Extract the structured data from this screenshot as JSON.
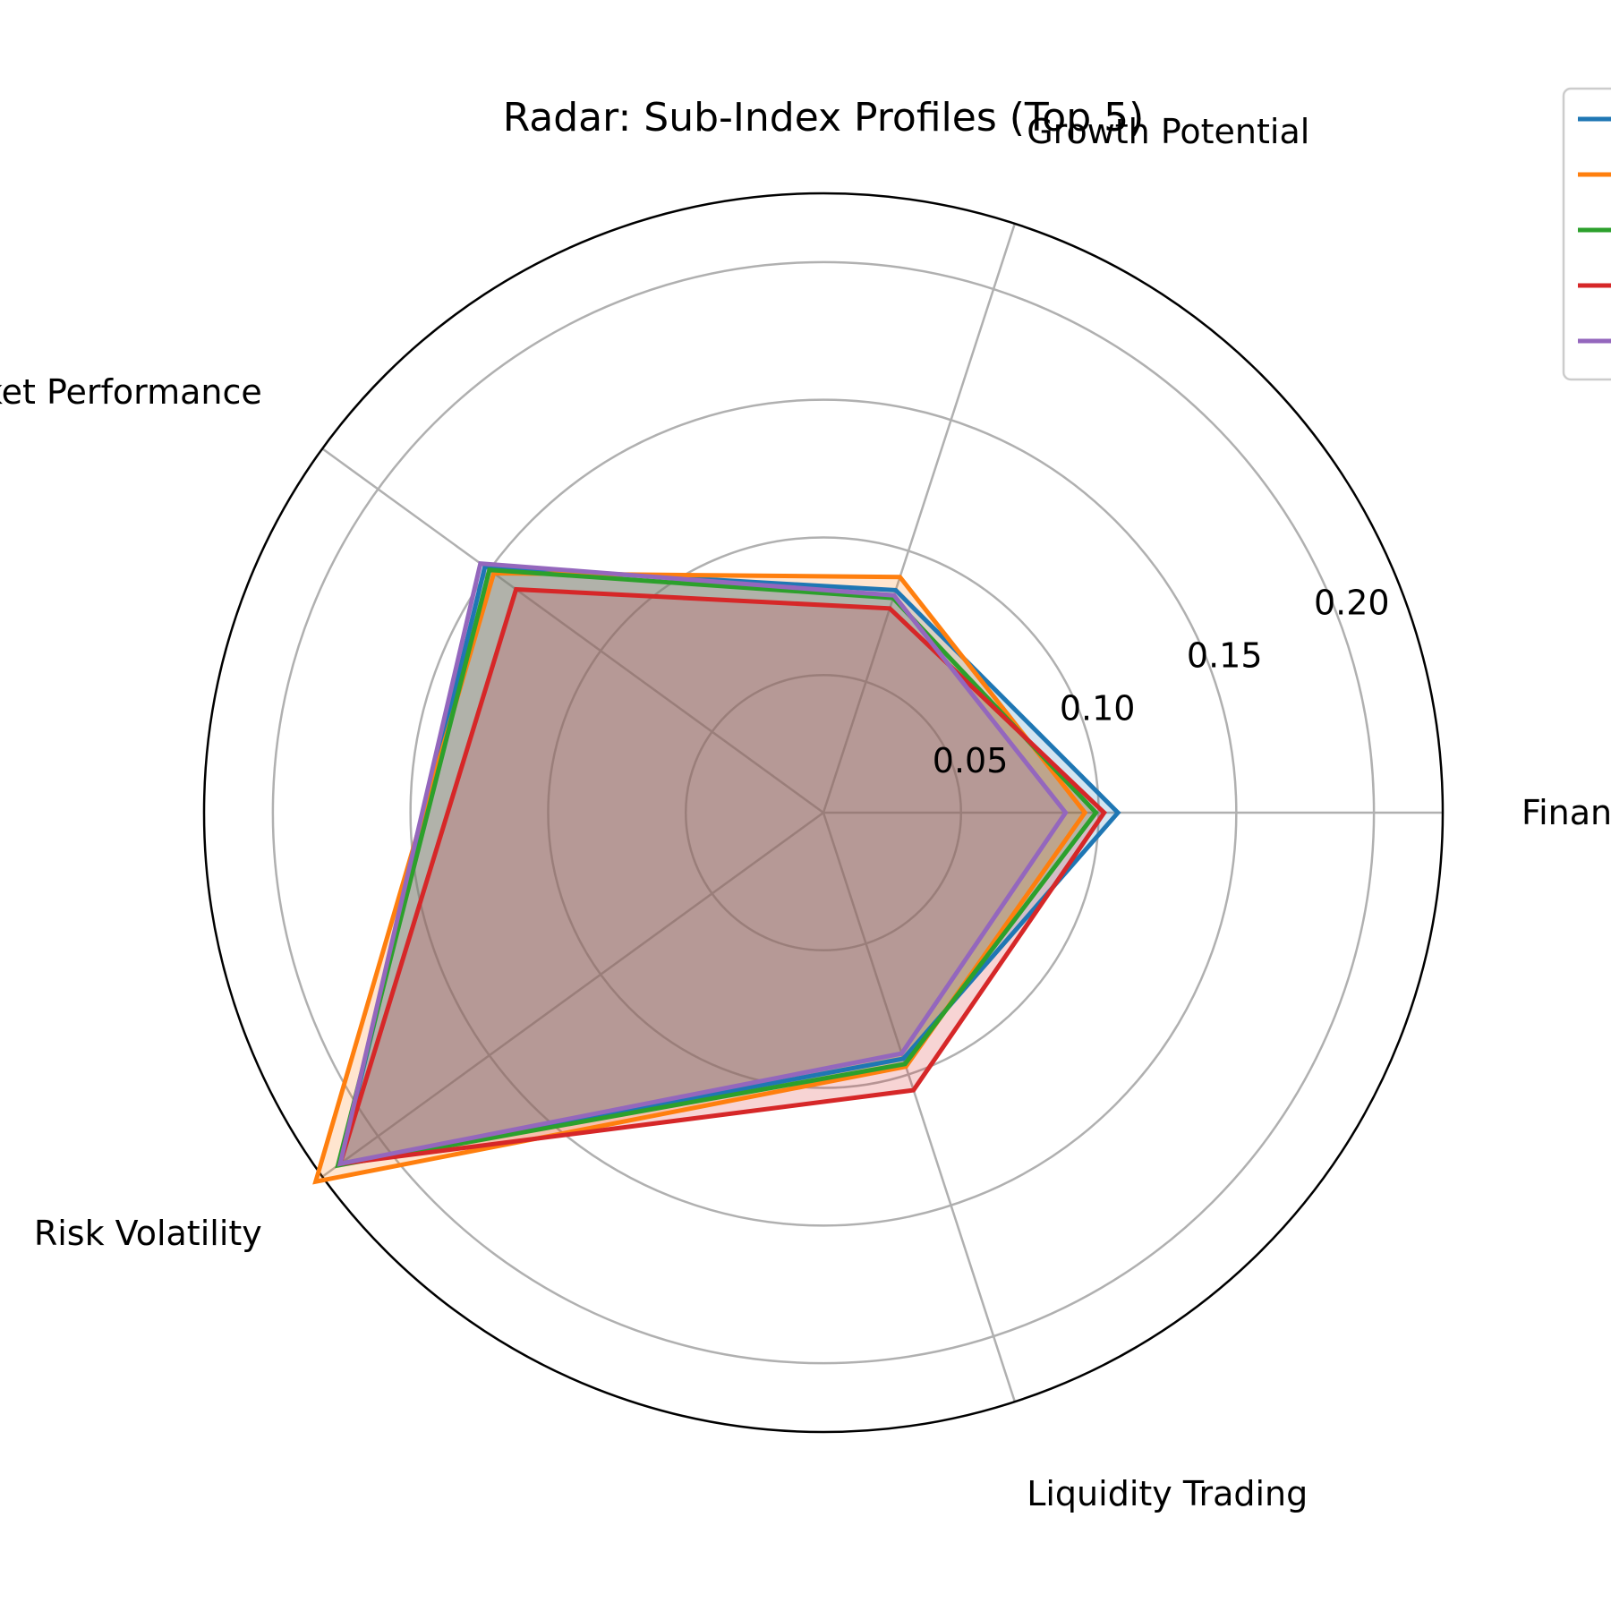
{
  "chart_data": {
    "type": "radar",
    "title": "Radar: Sub-Index Profiles (Top 5)",
    "axes": [
      "Financial Strength",
      "Growth Potential",
      "Market Performance",
      "Risk Volatility",
      "Liquidity Trading"
    ],
    "rlim": [
      0,
      0.225
    ],
    "rticks": [
      0.05,
      0.1,
      0.15,
      0.2
    ],
    "rtick_labels": [
      "0.05",
      "0.10",
      "0.15",
      "0.20"
    ],
    "grid": true,
    "legend_position": "top-right",
    "series": [
      {
        "values": [
          0.107,
          0.085,
          0.152,
          0.217,
          0.094
        ],
        "color": "#1f77b4"
      },
      {
        "values": [
          0.095,
          0.09,
          0.148,
          0.228,
          0.097
        ],
        "color": "#ff7f0e"
      },
      {
        "values": [
          0.099,
          0.082,
          0.15,
          0.218,
          0.096
        ],
        "color": "#2ca02c"
      },
      {
        "values": [
          0.102,
          0.078,
          0.138,
          0.217,
          0.106
        ],
        "color": "#d62728"
      },
      {
        "values": [
          0.088,
          0.083,
          0.154,
          0.217,
          0.092
        ],
        "color": "#9467bd"
      }
    ]
  }
}
